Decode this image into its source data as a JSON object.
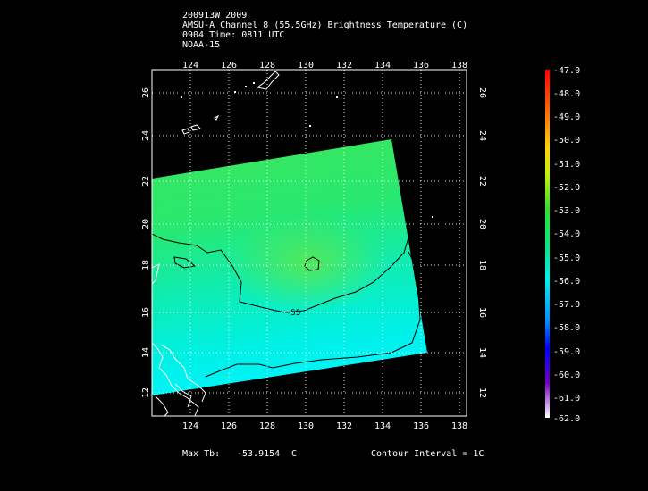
{
  "header": {
    "line1": "200913W 2009",
    "line2": "AMSU-A Channel 8 (55.5GHz) Brightness Temperature (C)",
    "line3": "0904 Time: 0811 UTC",
    "line4": "NOAA-15"
  },
  "map": {
    "lon_ticks": [
      "124",
      "126",
      "128",
      "130",
      "132",
      "134",
      "136",
      "138"
    ],
    "lat_ticks": [
      "12",
      "14",
      "16",
      "18",
      "20",
      "22",
      "24",
      "26"
    ],
    "contour_label": "-55"
  },
  "colorbar": {
    "labels": [
      "-47.0",
      "-48.0",
      "-49.0",
      "-50.0",
      "-51.0",
      "-52.0",
      "-53.0",
      "-54.0",
      "-55.0",
      "-56.0",
      "-57.0",
      "-58.0",
      "-59.0",
      "-60.0",
      "-61.0",
      "-62.0"
    ]
  },
  "footer": {
    "max_label": "Max Tb:",
    "max_value": "-53.9154",
    "max_unit": "C",
    "contour": "Contour Interval = 1C"
  },
  "colors": {
    "background": "#000000",
    "swath_green": "#2fe05a",
    "swath_cyan": "#00f0f0"
  }
}
